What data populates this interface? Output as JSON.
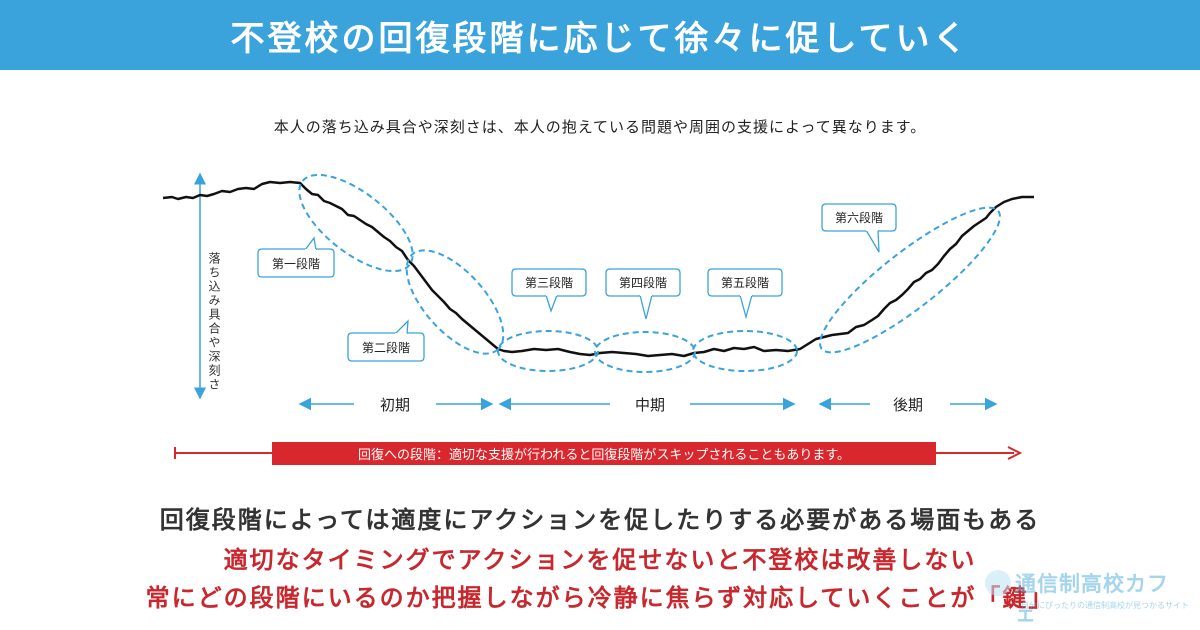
{
  "banner": {
    "title": "不登校の回復段階に応じて徐々に促していく"
  },
  "subtitle": "本人の落ち込み具合や深刻さは、本人の抱えている問題や周囲の支援によって異なります。",
  "y_axis_label": "落ち込み具合や深刻さ",
  "stages": {
    "s1": "第一段階",
    "s2": "第二段階",
    "s3": "第三段階",
    "s4": "第四段階",
    "s5": "第五段階",
    "s6": "第六段階"
  },
  "periods": {
    "early": "初期",
    "middle": "中期",
    "late": "後期"
  },
  "recovery_note": "回復への段階：適切な支援が行われると回復段階がスキップされることもあります。",
  "bottom": {
    "line1": "回復段階によっては適度にアクションを促したりする必要がある場面もある",
    "line2": "適切なタイミングでアクションを促せないと不登校は改善しない",
    "line3": "常にどの段階にいるのか把握しながら冷静に焦らず対応していくことが「鍵」"
  },
  "watermark": {
    "main": "通信制高校カフェ",
    "sub": "自分にぴったりの通信制高校が見つかるサイト"
  },
  "colors": {
    "banner": "#3aa3dc",
    "dash": "#3aa3dc",
    "arrow": "#3aa3dc",
    "red": "#d8282d",
    "curve": "#111111"
  }
}
